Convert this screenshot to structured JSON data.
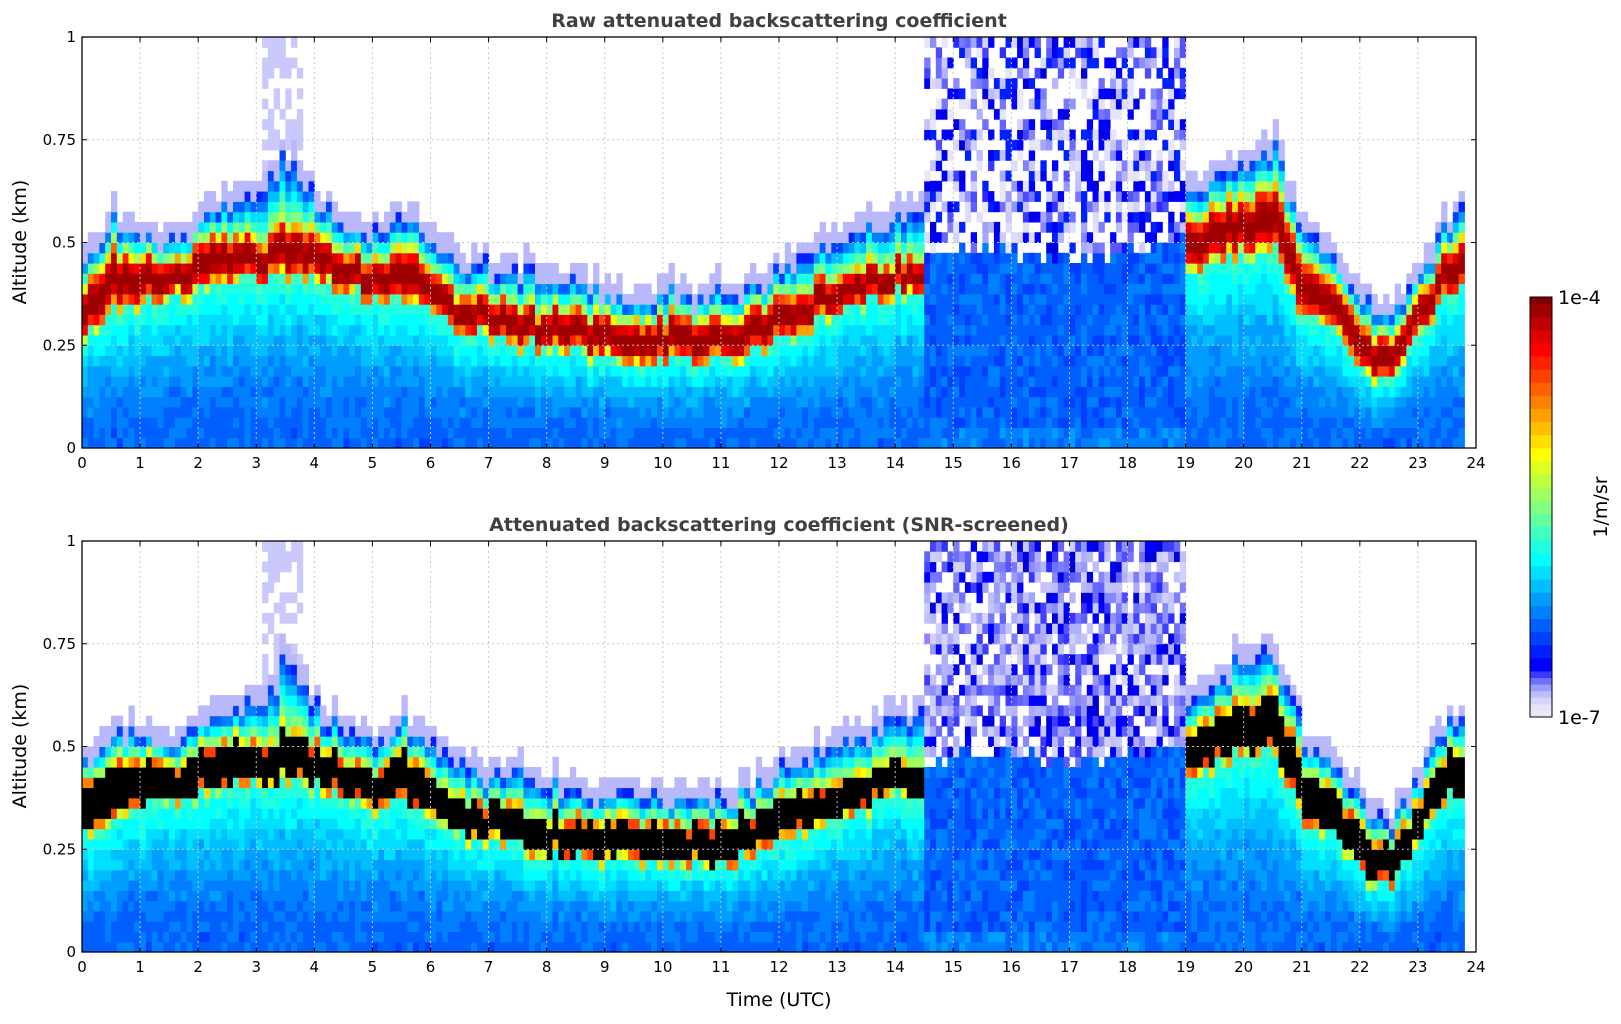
{
  "chart_data": [
    {
      "type": "heatmap",
      "title": "Raw attenuated backscattering coefficient",
      "xlabel": "",
      "ylabel": "Altitude (km)",
      "xlim": [
        0,
        24
      ],
      "ylim": [
        0,
        1
      ],
      "grid": true,
      "core_color": "colormap"
    },
    {
      "type": "heatmap",
      "title": "Attenuated backscattering coefficient (SNR-screened)",
      "xlabel": "Time (UTC)",
      "ylabel": "Altitude (km)",
      "xlim": [
        0,
        24
      ],
      "ylim": [
        0,
        1
      ],
      "grid": true,
      "core_color": "#000000"
    }
  ],
  "axes": {
    "xticks": [
      0,
      1,
      2,
      3,
      4,
      5,
      6,
      7,
      8,
      9,
      10,
      11,
      12,
      13,
      14,
      15,
      16,
      17,
      18,
      19,
      20,
      21,
      22,
      23,
      24
    ],
    "xtick_labels": [
      "0",
      "1",
      "2",
      "3",
      "4",
      "5",
      "6",
      "7",
      "8",
      "9",
      "10",
      "11",
      "12",
      "13",
      "14",
      "15",
      "16",
      "17",
      "18",
      "19",
      "20",
      "21",
      "22",
      "23",
      "24"
    ],
    "yticks": [
      0,
      0.25,
      0.5,
      0.75,
      1
    ],
    "ytick_labels": [
      "0",
      "0.25",
      "0.5",
      "0.75",
      "1"
    ]
  },
  "profile": {
    "time_h": [
      0,
      0.5,
      1,
      1.5,
      2,
      2.5,
      3,
      3.5,
      4,
      4.5,
      5,
      5.5,
      6,
      6.5,
      7,
      7.5,
      8,
      9,
      10,
      11,
      12,
      13,
      14,
      14.4,
      15,
      16,
      17,
      18,
      19,
      20,
      20.5,
      21,
      21.5,
      22,
      22.5,
      23,
      23.5,
      23.75
    ],
    "layer_bottom_km": [
      0.28,
      0.33,
      0.35,
      0.36,
      0.38,
      0.4,
      0.4,
      0.42,
      0.4,
      0.38,
      0.35,
      0.36,
      0.32,
      0.28,
      0.27,
      0.25,
      0.24,
      0.22,
      0.21,
      0.21,
      0.26,
      0.33,
      0.38,
      0.38,
      0.4,
      0.4,
      0.38,
      0.4,
      0.42,
      0.48,
      0.48,
      0.3,
      0.3,
      0.18,
      0.15,
      0.28,
      0.38,
      0.38
    ],
    "layer_top_km": [
      0.42,
      0.48,
      0.47,
      0.45,
      0.5,
      0.52,
      0.5,
      0.55,
      0.52,
      0.48,
      0.45,
      0.5,
      0.42,
      0.38,
      0.37,
      0.35,
      0.34,
      0.33,
      0.32,
      0.32,
      0.37,
      0.43,
      0.47,
      0.47,
      0.5,
      0.5,
      0.45,
      0.48,
      0.55,
      0.62,
      0.65,
      0.45,
      0.42,
      0.3,
      0.25,
      0.38,
      0.5,
      0.5
    ],
    "signal_top_km": [
      0.45,
      0.55,
      0.5,
      0.48,
      0.55,
      0.58,
      0.6,
      0.7,
      0.58,
      0.53,
      0.5,
      0.55,
      0.48,
      0.44,
      0.42,
      0.42,
      0.4,
      0.37,
      0.36,
      0.36,
      0.42,
      0.5,
      0.55,
      0.58,
      0.55,
      0.55,
      0.45,
      0.5,
      0.6,
      0.7,
      0.72,
      0.5,
      0.45,
      0.35,
      0.3,
      0.42,
      0.55,
      0.58
    ],
    "fog_periods_h": [
      [
        14.45,
        19.0
      ]
    ],
    "data_end_h": 23.75
  },
  "colorbar": {
    "max_label": "1e-4",
    "min_label": "1e-7",
    "label": "1/m/sr",
    "colormap": "jet"
  }
}
